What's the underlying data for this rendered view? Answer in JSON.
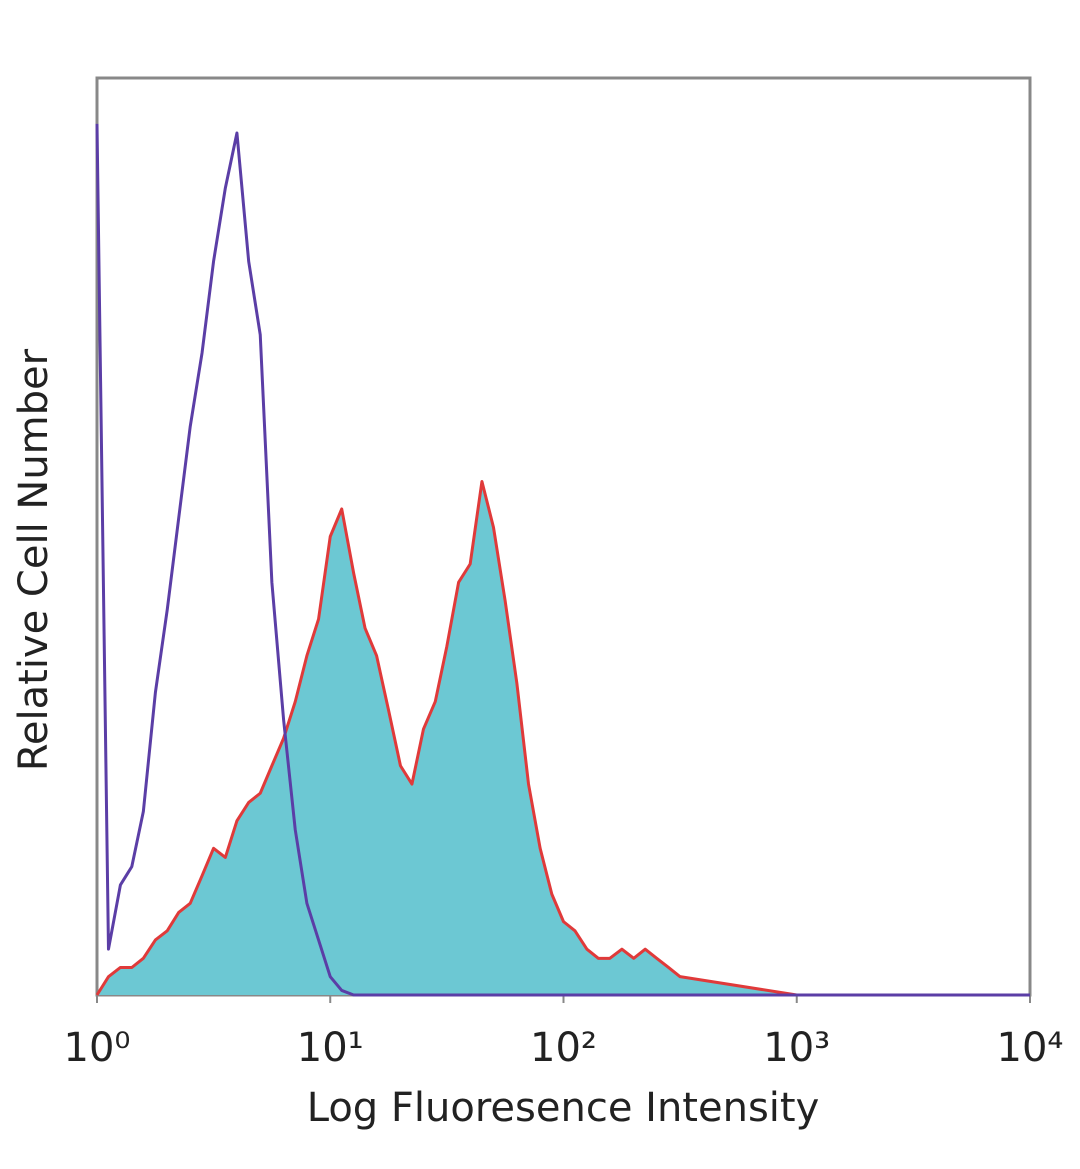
{
  "chart_data": {
    "type": "area",
    "xscale": "log",
    "xlabel": "Log Fluoresence Intensity",
    "ylabel": "Relative Cell Number",
    "xlim": [
      1,
      10000
    ],
    "ylim": [
      0,
      100
    ],
    "xticks": [
      {
        "value": 1,
        "label": "10⁰"
      },
      {
        "value": 10,
        "label": "10¹"
      },
      {
        "value": 100,
        "label": "10²"
      },
      {
        "value": 1000,
        "label": "10³"
      },
      {
        "value": 10000,
        "label": "10⁴"
      }
    ],
    "x": [
      1,
      1.12,
      1.26,
      1.41,
      1.58,
      1.78,
      2,
      2.24,
      2.51,
      2.82,
      3.16,
      3.55,
      3.98,
      4.47,
      5.01,
      5.62,
      6.31,
      7.08,
      7.94,
      8.91,
      10,
      11.2,
      12.6,
      14.1,
      15.8,
      17.8,
      20,
      22.4,
      25.1,
      28.2,
      31.6,
      35.5,
      39.8,
      44.7,
      50.1,
      56.2,
      63.1,
      70.8,
      79.4,
      89.1,
      100,
      112,
      126,
      141,
      158,
      178,
      200,
      224,
      251,
      282,
      316,
      1000,
      10000
    ],
    "series": [
      {
        "color": "#e03a3a",
        "fill": "#6cc8d3",
        "values": [
          0,
          2,
          3,
          3,
          4,
          6,
          7,
          9,
          10,
          13,
          16,
          15,
          19,
          21,
          22,
          25,
          28,
          32,
          37,
          41,
          50,
          53,
          46,
          40,
          37,
          31,
          25,
          23,
          29,
          32,
          38,
          45,
          47,
          56,
          51,
          43,
          34,
          23,
          16,
          11,
          8,
          7,
          5,
          4,
          4,
          5,
          4,
          5,
          4,
          3,
          2,
          0,
          0
        ]
      },
      {
        "color": "#5b3ea6",
        "fill": "none",
        "values": [
          95,
          5,
          12,
          14,
          20,
          33,
          42,
          52,
          62,
          70,
          80,
          88,
          94,
          80,
          72,
          45,
          30,
          18,
          10,
          6,
          2,
          0.5,
          0,
          0,
          0,
          0,
          0,
          0,
          0,
          0,
          0,
          0,
          0,
          0,
          0,
          0,
          0,
          0,
          0,
          0,
          0,
          0,
          0,
          0,
          0,
          0,
          0,
          0,
          0,
          0,
          0,
          0,
          0
        ]
      }
    ]
  }
}
